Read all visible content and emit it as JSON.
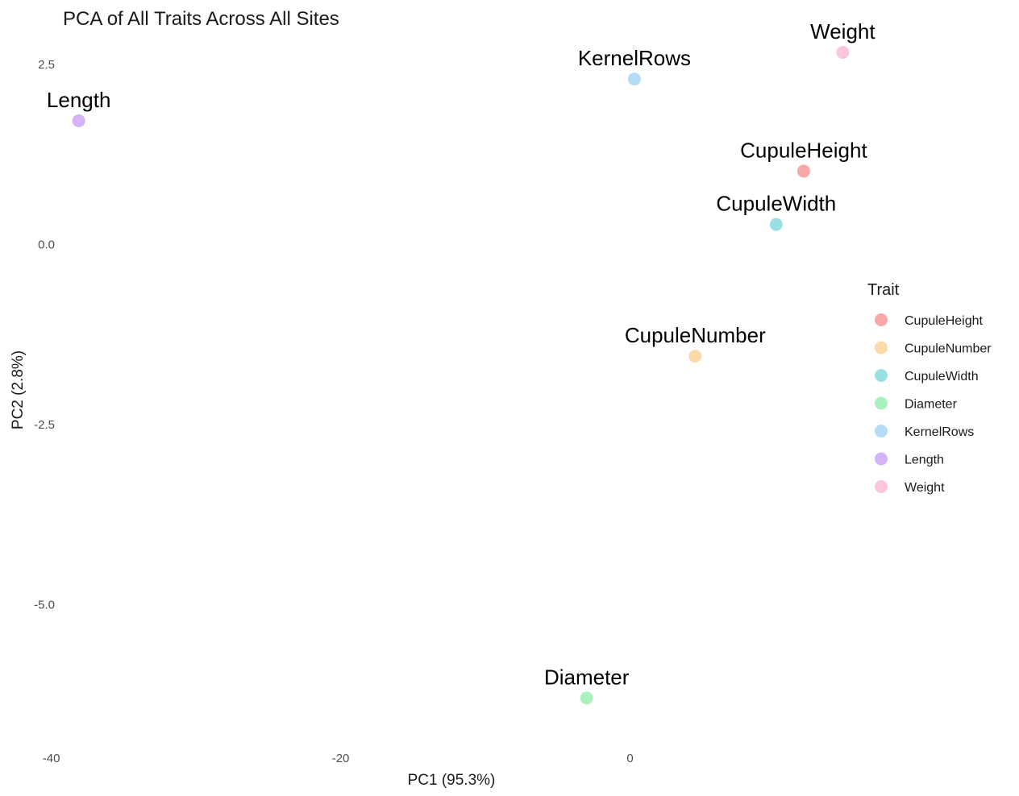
{
  "chart_data": {
    "type": "scatter",
    "title": "PCA of All Traits Across All Sites",
    "xlabel": "PC1 (95.3%)",
    "ylabel": "PC2 (2.8%)",
    "xlim": [
      -40.2,
      14.4
    ],
    "ylim": [
      -6.9,
      2.95
    ],
    "xticks": [
      -40,
      -20,
      0
    ],
    "xtick_labels": [
      "-40",
      "-20",
      "0"
    ],
    "yticks": [
      2.5,
      0.0,
      -2.5,
      -5.0
    ],
    "ytick_labels": [
      "2.5",
      "0.0",
      "-2.5",
      "-5.0"
    ],
    "grid": false,
    "legend_title": "Trait",
    "legend_position": "right",
    "series": [
      {
        "name": "CupuleHeight",
        "x": 12.0,
        "y": 1.02,
        "color": "#F8A7A7"
      },
      {
        "name": "CupuleNumber",
        "x": 4.5,
        "y": -1.55,
        "color": "#FDD9A8"
      },
      {
        "name": "CupuleWidth",
        "x": 10.1,
        "y": 0.28,
        "color": "#9ADFE3"
      },
      {
        "name": "Diameter",
        "x": -3.0,
        "y": -6.3,
        "color": "#A9F2BE"
      },
      {
        "name": "KernelRows",
        "x": 0.3,
        "y": 2.3,
        "color": "#B4DCF8"
      },
      {
        "name": "Length",
        "x": -38.1,
        "y": 1.72,
        "color": "#D3B4F7"
      },
      {
        "name": "Weight",
        "x": 14.7,
        "y": 2.67,
        "color": "#FDC6DE"
      }
    ]
  }
}
